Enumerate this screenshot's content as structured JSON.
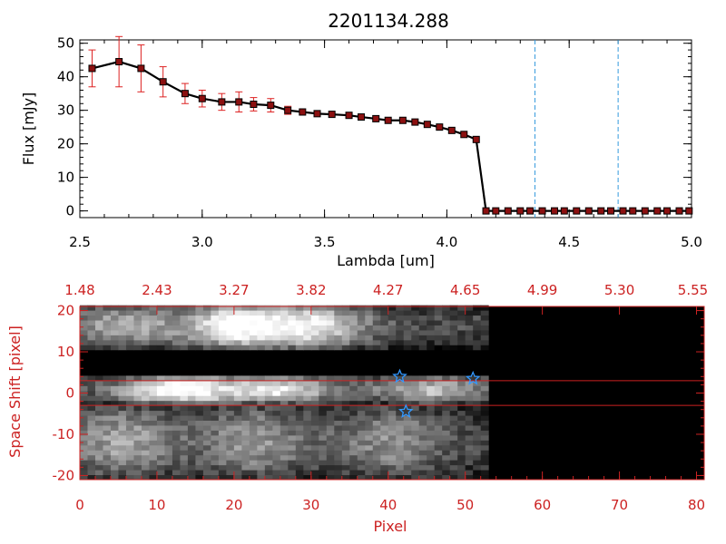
{
  "chart_data": [
    {
      "type": "line",
      "title": "2201134.288",
      "xlabel": "Lambda [um]",
      "ylabel": "Flux [mJy]",
      "xlim": [
        2.5,
        5.0
      ],
      "ylim": [
        -2,
        51
      ],
      "xticks": [
        "2.5",
        "3.0",
        "3.5",
        "4.0",
        "4.5",
        "5.0"
      ],
      "yticks": [
        "0",
        "10",
        "20",
        "30",
        "40",
        "50"
      ],
      "vlines": [
        4.36,
        4.7
      ],
      "series": [
        {
          "x": [
            2.55,
            2.66,
            2.75,
            2.84,
            2.93,
            3.0,
            3.08,
            3.15,
            3.21,
            3.28,
            3.35,
            3.41,
            3.47,
            3.53,
            3.6,
            3.65,
            3.71,
            3.76,
            3.82,
            3.87,
            3.92,
            3.97,
            4.02,
            4.07,
            4.12,
            4.16,
            4.2,
            4.25,
            4.3,
            4.34,
            4.39,
            4.44,
            4.48,
            4.53,
            4.58,
            4.63,
            4.67,
            4.72,
            4.76,
            4.81,
            4.86,
            4.9,
            4.95,
            4.99
          ],
          "values": [
            42.5,
            44.5,
            42.5,
            38.5,
            35,
            33.5,
            32.5,
            32.5,
            31.8,
            31.5,
            30,
            29.5,
            29,
            28.8,
            28.5,
            28,
            27.5,
            27,
            27,
            26.5,
            25.8,
            25,
            24,
            22.8,
            21.3,
            0,
            0,
            0,
            0,
            0,
            0,
            0,
            0,
            0,
            0,
            0,
            0,
            0,
            0,
            0,
            0,
            0,
            0,
            0
          ],
          "errors": [
            5.5,
            7.5,
            7.0,
            4.5,
            3.0,
            2.5,
            2.5,
            3.0,
            2.0,
            2.0,
            1.2,
            0.8,
            0.6,
            0.6,
            0.6,
            0.5,
            0.5,
            0.5,
            0.5,
            0.5,
            0.5,
            0.5,
            0.5,
            0.5,
            0.5,
            0.8,
            0.8,
            0.8,
            0.8,
            0.8,
            0.8,
            0.8,
            0.8,
            0.8,
            0.8,
            0.8,
            0.8,
            0.8,
            0.8,
            0.8,
            0.8,
            0.8,
            0.8,
            0.8
          ]
        }
      ]
    },
    {
      "type": "heatmap",
      "xlabel": "Pixel",
      "ylabel": "Space Shift [pixel]",
      "xlim": [
        0,
        81
      ],
      "ylim": [
        -21,
        21
      ],
      "xticks": [
        "0",
        "10",
        "20",
        "30",
        "40",
        "50",
        "60",
        "70",
        "80"
      ],
      "yticks": [
        "20",
        "10",
        "0",
        "-10",
        "-20"
      ],
      "top_ticks": [
        "1.48",
        "2.43",
        "3.27",
        "3.82",
        "4.27",
        "4.65",
        "4.99",
        "5.30",
        "5.55"
      ],
      "hlines": [
        3,
        -3
      ],
      "markers": [
        {
          "x": 41.5,
          "y": 4
        },
        {
          "x": 42.3,
          "y": -4.5
        },
        {
          "x": 51,
          "y": 3.5
        }
      ],
      "bands": [
        {
          "y0": 10.5,
          "y1": 21,
          "x0": 0,
          "x1": 53,
          "peaks": [
            {
              "x": 20,
              "v": 0.9
            },
            {
              "x": 30,
              "v": 0.7
            },
            {
              "x": 5,
              "v": 0.45
            }
          ],
          "base": 0.3
        },
        {
          "y0": -3,
          "y1": 3.5,
          "x0": 0,
          "x1": 53,
          "peaks": [
            {
              "x": 12,
              "v": 1.0
            },
            {
              "x": 25,
              "v": 0.75
            },
            {
              "x": 45,
              "v": 0.55
            }
          ],
          "base": 0.3
        },
        {
          "y0": -21,
          "y1": -3.5,
          "x0": 0,
          "x1": 53,
          "peaks": [
            {
              "x": 5,
              "v": 0.5
            },
            {
              "x": 22,
              "v": 0.45
            },
            {
              "x": 40,
              "v": 0.4
            }
          ],
          "base": 0.25
        }
      ]
    }
  ],
  "colors": {
    "frame_top": "#000000",
    "frame_bottom": "#cc2222",
    "line": "#000000",
    "marker_fill": "#8b1010",
    "errorbar": "#dd2222",
    "vline": "#3399dd",
    "hline": "#cc2222",
    "star": "#3399ff"
  }
}
